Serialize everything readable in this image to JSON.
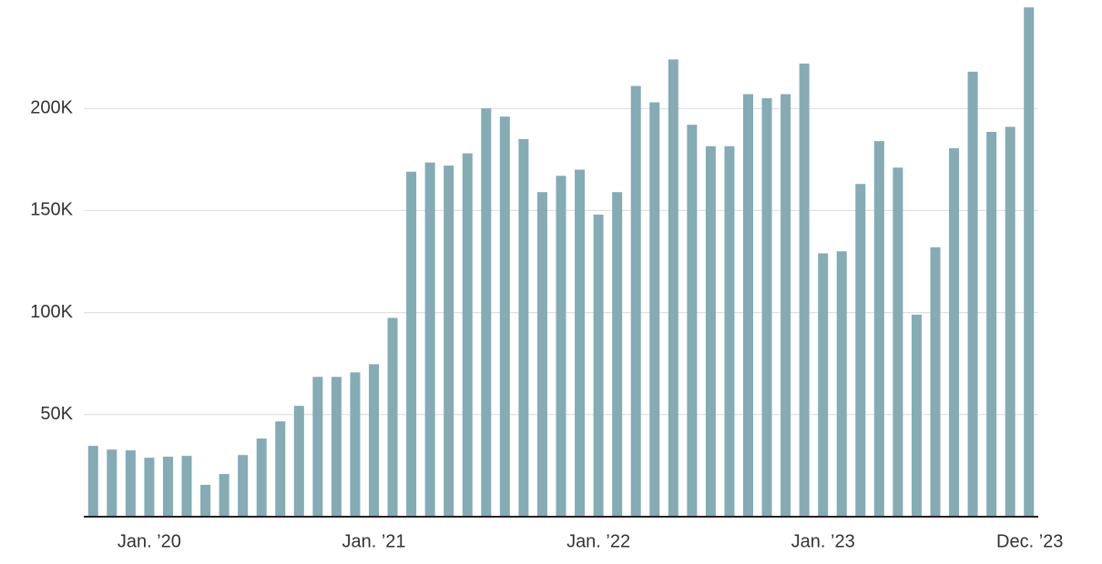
{
  "chart_data": {
    "type": "bar",
    "categories": [
      null,
      null,
      null,
      "Jan. ’20",
      null,
      null,
      null,
      null,
      null,
      null,
      null,
      null,
      null,
      null,
      null,
      "Jan. ’21",
      null,
      null,
      null,
      null,
      null,
      null,
      null,
      null,
      null,
      null,
      null,
      "Jan. ’22",
      null,
      null,
      null,
      null,
      null,
      null,
      null,
      null,
      null,
      null,
      null,
      "Jan. ’23",
      null,
      null,
      null,
      null,
      null,
      null,
      null,
      null,
      null,
      null,
      "Dec. ’23"
    ],
    "values": [
      34700,
      32900,
      32500,
      28900,
      29400,
      29800,
      15600,
      20900,
      30200,
      38300,
      46700,
      54300,
      68500,
      68500,
      70700,
      74700,
      97400,
      169000,
      173500,
      172000,
      178000,
      200000,
      196000,
      185000,
      159000,
      167000,
      170000,
      148000,
      159000,
      211000,
      203000,
      224000,
      192000,
      181500,
      181500,
      207000,
      205000,
      207000,
      222000,
      129000,
      130000,
      163000,
      184000,
      171000,
      99000,
      132000,
      180500,
      218000,
      188500,
      191000,
      249500
    ],
    "color": "#85abb5",
    "ylim": [
      0,
      250000
    ],
    "yticks": [
      {
        "value": 50000,
        "label": "50K"
      },
      {
        "value": 100000,
        "label": "100K"
      },
      {
        "value": 150000,
        "label": "150K"
      },
      {
        "value": 200000,
        "label": "200K"
      }
    ],
    "grid": true
  }
}
